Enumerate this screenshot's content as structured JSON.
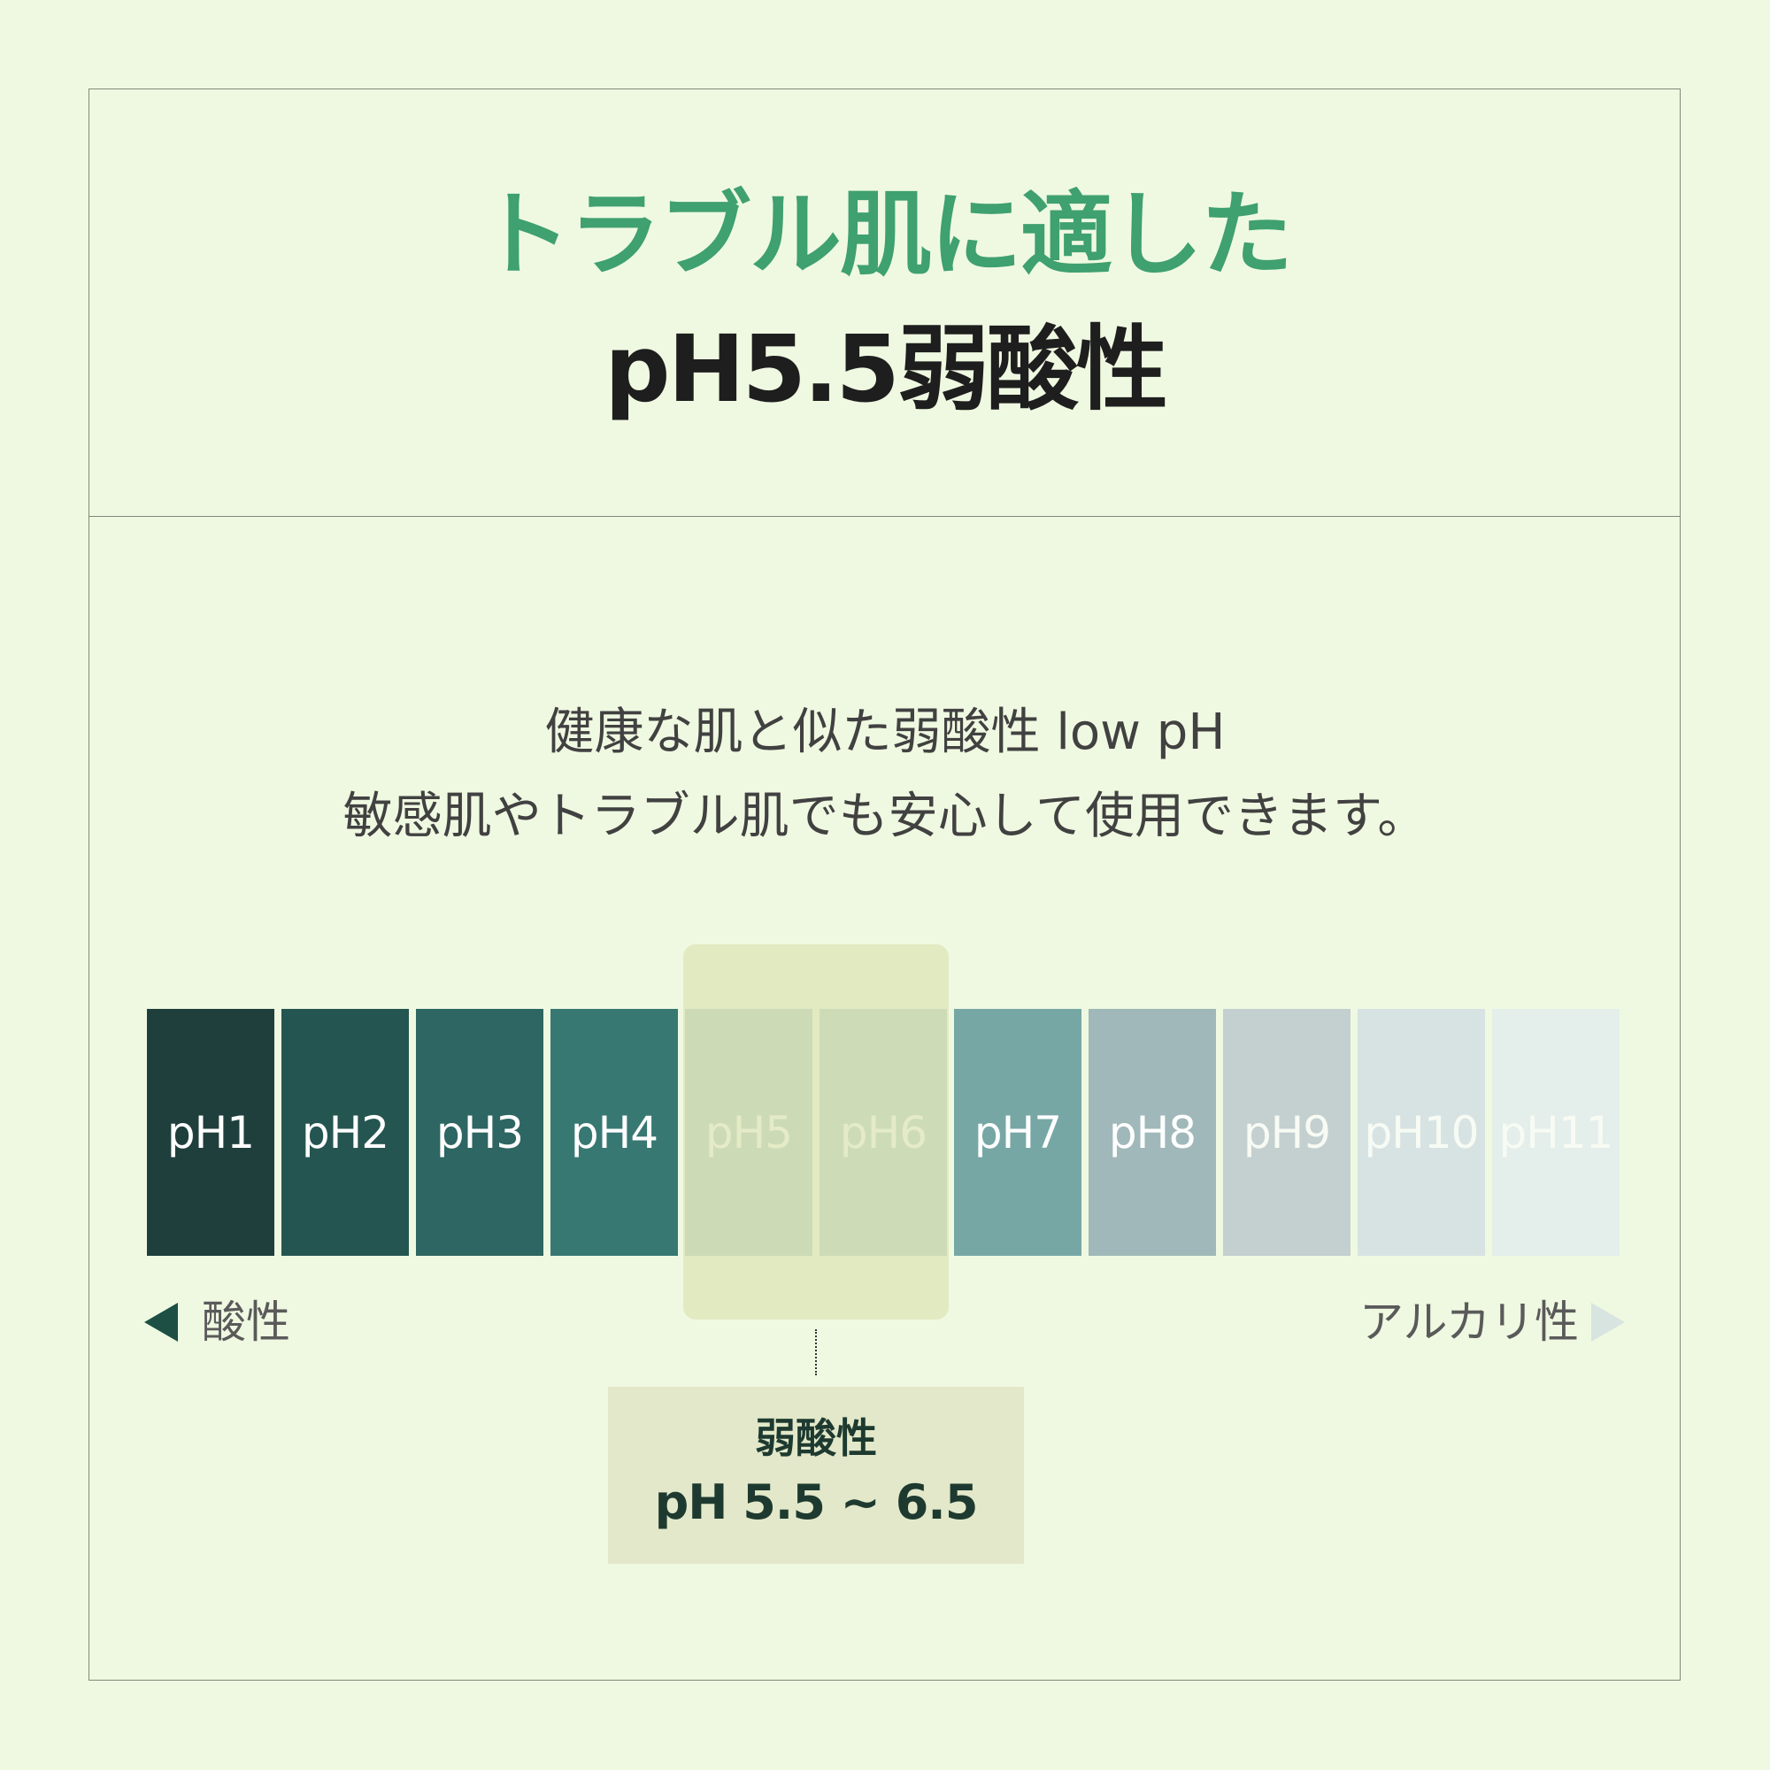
{
  "header": {
    "title_line1": "トラブル肌に適した",
    "title_line2": "pH5.5弱酸性"
  },
  "description": {
    "line1": "健康な肌と似た弱酸性 low pH",
    "line2": "敏感肌やトラブル肌でも安心して使用できます。"
  },
  "scale": {
    "cells": [
      {
        "label": "pH1",
        "color": "#1f3f3d"
      },
      {
        "label": "pH2",
        "color": "#255551"
      },
      {
        "label": "pH3",
        "color": "#2d6662"
      },
      {
        "label": "pH4",
        "color": "#387873"
      },
      {
        "label": "pH5",
        "color": "#5d918a"
      },
      {
        "label": "pH6",
        "color": "#679d96"
      },
      {
        "label": "pH7",
        "color": "#77a7a5"
      },
      {
        "label": "pH8",
        "color": "#a0b8b9"
      },
      {
        "label": "pH9",
        "color": "#c4cfcf"
      },
      {
        "label": "pH10",
        "color": "#d7e3e3"
      },
      {
        "label": "pH11",
        "color": "#e4eeeb"
      }
    ],
    "left_label": "酸性",
    "right_label": "アルカリ性"
  },
  "callout": {
    "title": "弱酸性",
    "value": "pH 5.5 ~ 6.5"
  },
  "colors": {
    "background": "#eff9e1",
    "accent_green": "#3fa070",
    "highlight": "#dfe8bc",
    "callout_bg": "#e2e8c9"
  }
}
